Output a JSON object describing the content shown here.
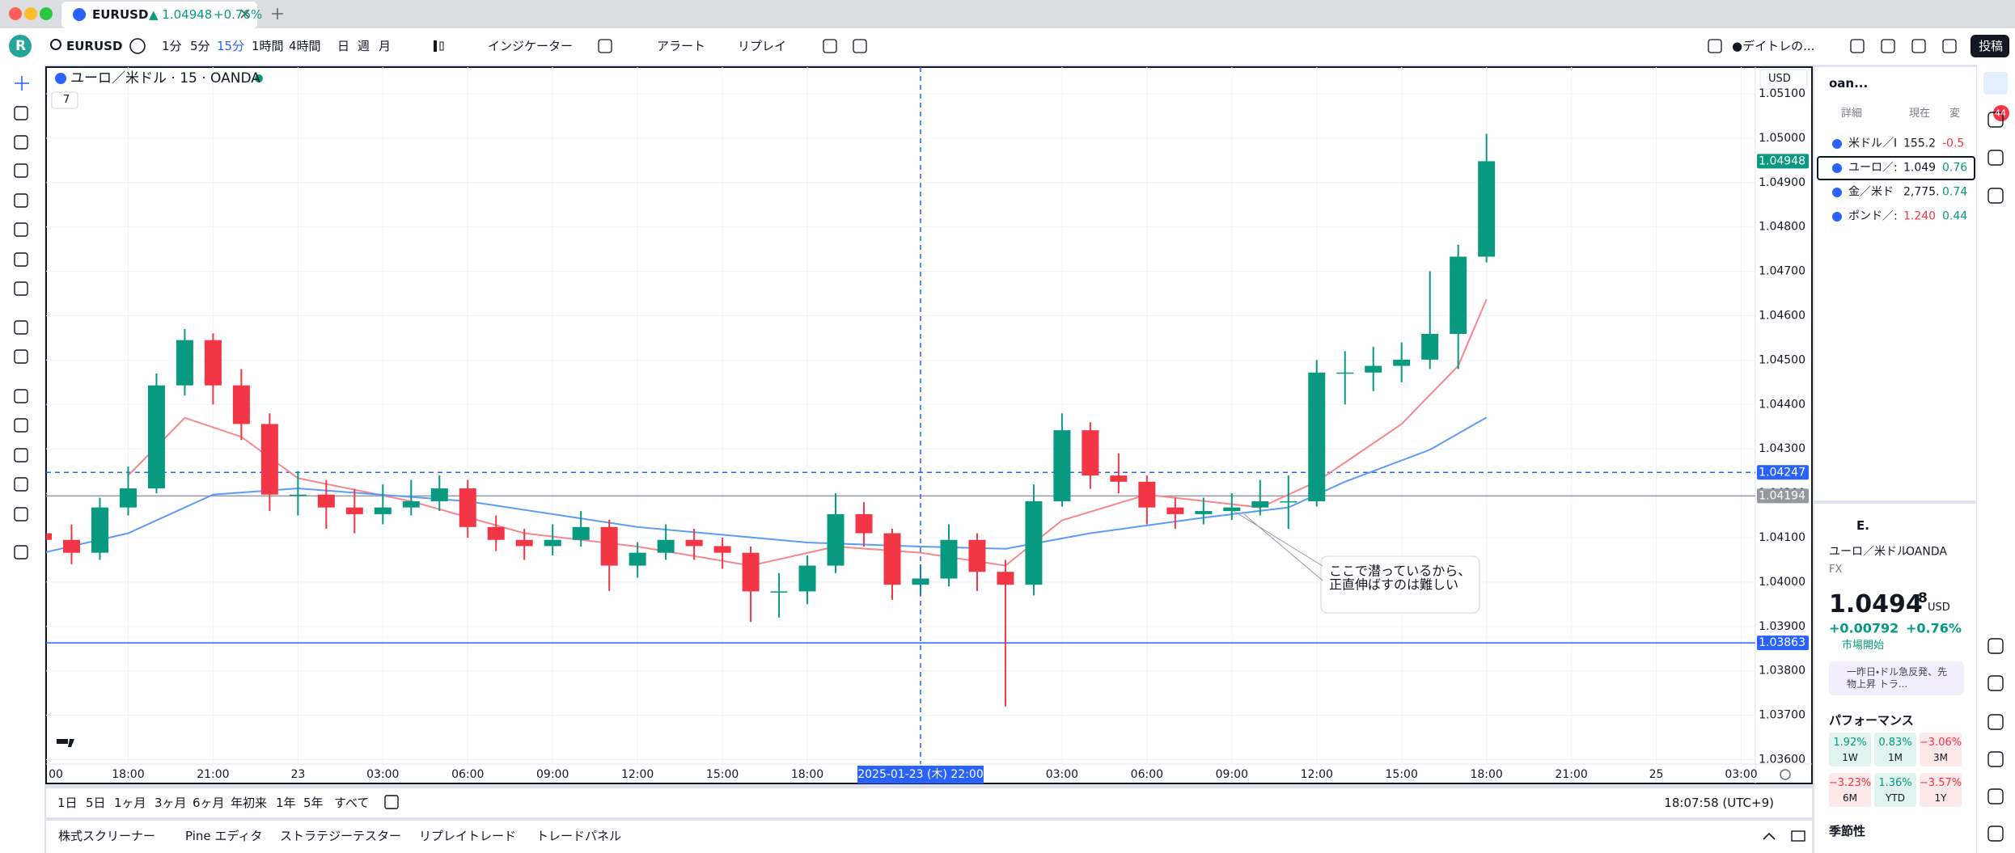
{
  "tab": {
    "symbol": "EURUSD",
    "price": "▲ 1.04948",
    "change": "+0.76%"
  },
  "toolbar": {
    "avatar": "R",
    "symbol": "EURUSD",
    "timeframes": [
      "1分",
      "5分",
      "15分",
      "1時間",
      "4時間",
      "日",
      "週",
      "月"
    ],
    "active_timeframe": "15分",
    "indicators": "インジケーター",
    "alert": "アラート",
    "replay": "リプレイ",
    "layout": "●デイトレの...",
    "publish": "投稿"
  },
  "chart_data": {
    "type": "candlestick",
    "title": "ユーロ／米ドル · 15 · OANDA",
    "indicator_count": 7,
    "currency": "USD",
    "up_color": "#089981",
    "down_color": "#f23645",
    "grid": true,
    "x": [
      15,
      16,
      17,
      18,
      19,
      20,
      21,
      22,
      23,
      24,
      25,
      26,
      27,
      28,
      29,
      30,
      31,
      32,
      33,
      34,
      35,
      36,
      37,
      38,
      39,
      40,
      41,
      42,
      43,
      44,
      45,
      46,
      47,
      48,
      49,
      50,
      51,
      52,
      53,
      54,
      55,
      56,
      57,
      58,
      59,
      60,
      61,
      62,
      63,
      64,
      65,
      66
    ],
    "open": [
      1.0411,
      1.04095,
      1.04066,
      1.04168,
      1.04211,
      1.04443,
      1.04545,
      1.04443,
      1.04356,
      1.04197,
      1.04197,
      1.04168,
      1.04153,
      1.04168,
      1.04182,
      1.04211,
      1.04124,
      1.04095,
      1.04081,
      1.04095,
      1.04124,
      1.04037,
      1.04066,
      1.04095,
      1.04081,
      1.04066,
      1.03979,
      1.03979,
      1.04037,
      1.04153,
      1.0411,
      1.03994,
      1.04008,
      1.04095,
      1.04023,
      1.03994,
      1.04182,
      1.04342,
      1.0424,
      1.04226,
      1.04168,
      1.04153,
      1.0416,
      1.04168,
      1.04182,
      1.04182,
      1.04472,
      1.04472,
      1.04487,
      1.04501,
      1.04559,
      1.04733
    ],
    "high": [
      1.0414,
      1.0413,
      1.0419,
      1.0426,
      1.0447,
      1.0457,
      1.0456,
      1.0448,
      1.0438,
      1.0425,
      1.0423,
      1.0421,
      1.0422,
      1.0423,
      1.0424,
      1.0423,
      1.0415,
      1.0412,
      1.0413,
      1.0416,
      1.0414,
      1.0409,
      1.0413,
      1.0412,
      1.041,
      1.0408,
      1.0402,
      1.0406,
      1.042,
      1.0418,
      1.0412,
      1.0404,
      1.0413,
      1.0411,
      1.0405,
      1.0422,
      1.0438,
      1.0436,
      1.0429,
      1.0424,
      1.0419,
      1.0419,
      1.042,
      1.0423,
      1.0424,
      1.045,
      1.0452,
      1.0453,
      1.0454,
      1.047,
      1.0476,
      1.0501
    ],
    "low": [
      1.0401,
      1.0404,
      1.0405,
      1.0415,
      1.042,
      1.0442,
      1.044,
      1.0432,
      1.0416,
      1.0415,
      1.0412,
      1.0411,
      1.0413,
      1.0415,
      1.0416,
      1.041,
      1.0407,
      1.0405,
      1.0406,
      1.0408,
      1.0398,
      1.0401,
      1.0405,
      1.0405,
      1.0403,
      1.0391,
      1.0392,
      1.0395,
      1.0402,
      1.0408,
      1.0396,
      1.0397,
      1.0399,
      1.0398,
      1.0372,
      1.0397,
      1.0417,
      1.0421,
      1.042,
      1.0413,
      1.0412,
      1.0413,
      1.0414,
      1.0415,
      1.0412,
      1.0417,
      1.044,
      1.0443,
      1.0445,
      1.0448,
      1.0448,
      1.0472
    ],
    "close": [
      1.04095,
      1.04066,
      1.04168,
      1.04211,
      1.04443,
      1.04545,
      1.04443,
      1.04356,
      1.04197,
      1.04197,
      1.04168,
      1.04153,
      1.04168,
      1.04182,
      1.04211,
      1.04124,
      1.04095,
      1.04081,
      1.04095,
      1.04124,
      1.04037,
      1.04066,
      1.04095,
      1.04081,
      1.04066,
      1.03979,
      1.03979,
      1.04037,
      1.04153,
      1.0411,
      1.03994,
      1.04008,
      1.04095,
      1.04023,
      1.03994,
      1.04182,
      1.04342,
      1.0424,
      1.04226,
      1.04168,
      1.04153,
      1.0416,
      1.04168,
      1.04182,
      1.04182,
      1.04472,
      1.04472,
      1.04487,
      1.04501,
      1.04559,
      1.04733,
      1.04948
    ],
    "moving_averages": [
      {
        "color": "#f7868f",
        "x": [
          18,
          20,
          22,
          24,
          28,
          32,
          36,
          40,
          43,
          46,
          49,
          51,
          54,
          58,
          60,
          63,
          65,
          66
        ],
        "values": [
          1.0424,
          1.0437,
          1.04327,
          1.04234,
          1.04182,
          1.0411,
          1.0408,
          1.04037,
          1.0408,
          1.04066,
          1.04037,
          1.04139,
          1.04197,
          1.04168,
          1.04226,
          1.04356,
          1.04487,
          1.04637
        ]
      },
      {
        "color": "#5b9cf6",
        "x": [
          15,
          18,
          21,
          24,
          30,
          36,
          42,
          46,
          49,
          52,
          56,
          59,
          61,
          64,
          66
        ],
        "values": [
          1.04066,
          1.0411,
          1.04197,
          1.04211,
          1.04182,
          1.04124,
          1.04089,
          1.0408,
          1.04075,
          1.0411,
          1.04145,
          1.04168,
          1.04226,
          1.04298,
          1.04371
        ]
      }
    ],
    "price_lines": [
      {
        "value": 1.04948,
        "color": "#089981",
        "style": "none"
      },
      {
        "value": 1.04247,
        "color": "#2962ff",
        "style": "dashed"
      },
      {
        "value": 1.04194,
        "color": "#9598a1",
        "style": "solid"
      },
      {
        "value": 1.03863,
        "color": "#2962ff",
        "style": "solid"
      }
    ],
    "crosshair": {
      "x": 46,
      "label": "2025-01-23 (木)  22:00",
      "color": "#2962ff"
    },
    "annotation": [
      "ここで潜っているから、",
      "正直伸ばすのは難しい"
    ],
    "xlim": [
      15.1,
      75.5
    ],
    "xticks": [
      {
        "value": 15,
        "label": "00"
      },
      {
        "value": 18,
        "label": "18:00"
      },
      {
        "value": 21,
        "label": "21:00"
      },
      {
        "value": 24,
        "label": "23"
      },
      {
        "value": 27,
        "label": "03:00"
      },
      {
        "value": 30,
        "label": "06:00"
      },
      {
        "value": 33,
        "label": "09:00"
      },
      {
        "value": 36,
        "label": "12:00"
      },
      {
        "value": 39,
        "label": "15:00"
      },
      {
        "value": 42,
        "label": "18:00"
      },
      {
        "value": 51,
        "label": "03:00"
      },
      {
        "value": 54,
        "label": "06:00"
      },
      {
        "value": 57,
        "label": "09:00"
      },
      {
        "value": 60,
        "label": "12:00"
      },
      {
        "value": 63,
        "label": "15:00"
      },
      {
        "value": 66,
        "label": "18:00"
      },
      {
        "value": 69,
        "label": "21:00"
      },
      {
        "value": 72,
        "label": "25"
      },
      {
        "value": 75,
        "label": "03:00"
      }
    ],
    "ylim": [
      1.0359,
      1.0516
    ],
    "yticks": [
      {
        "value": 1.036,
        "label": "1.03600"
      },
      {
        "value": 1.037,
        "label": "1.03700"
      },
      {
        "value": 1.038,
        "label": "1.03800"
      },
      {
        "value": 1.039,
        "label": "1.03900"
      },
      {
        "value": 1.04,
        "label": "1.04000"
      },
      {
        "value": 1.041,
        "label": "1.04100"
      },
      {
        "value": 1.042,
        "label": "1.04200"
      },
      {
        "value": 1.043,
        "label": "1.04300"
      },
      {
        "value": 1.044,
        "label": "1.04400"
      },
      {
        "value": 1.045,
        "label": "1.04500"
      },
      {
        "value": 1.046,
        "label": "1.04600"
      },
      {
        "value": 1.047,
        "label": "1.04700"
      },
      {
        "value": 1.048,
        "label": "1.04800"
      },
      {
        "value": 1.049,
        "label": "1.04900"
      },
      {
        "value": 1.05,
        "label": "1.05000"
      },
      {
        "value": 1.051,
        "label": "1.05100"
      }
    ]
  },
  "ranges": [
    "1日",
    "5日",
    "1ヶ月",
    "3ヶ月",
    "6ヶ月",
    "年初来",
    "1年",
    "5年",
    "すべて"
  ],
  "clock": "18:07:58 (UTC+9)",
  "bottom_tabs": [
    "株式スクリーナー",
    "Pine エディタ",
    "ストラテジーテスター",
    "リプレイトレード",
    "トレードパネル"
  ],
  "watchlist": {
    "name": "oan...",
    "columns": [
      "詳細",
      "現在",
      "変"
    ],
    "rows": [
      [
        "米ドル／I",
        "155.2",
        "-0.5"
      ],
      [
        "ユーロ／:",
        "1.049",
        "0.76"
      ],
      [
        "金／米ド",
        "2,775.",
        "0.74"
      ],
      [
        "ポンド／:",
        "1.240",
        "0.44"
      ]
    ]
  },
  "details": {
    "short": "E.",
    "name": "ユーロ／米ドル",
    "exchange": "OANDA",
    "type": "FX",
    "price": "1.0494",
    "price_small": "8",
    "currency": "USD",
    "change": "+0.00792",
    "change_pct": "+0.76%",
    "status": "市場開始",
    "news": "一昨日・ドル急反発、先物上昇 トラ...",
    "performance_title": "パフォーマンス",
    "performance": [
      [
        "1.92%",
        "1W"
      ],
      [
        "0.83%",
        "1M"
      ],
      [
        "−3.06%",
        "3M"
      ],
      [
        "−3.23%",
        "6M"
      ],
      [
        "1.36%",
        "YTD"
      ],
      [
        "−3.57%",
        "1Y"
      ]
    ],
    "seasonality": "季節性"
  },
  "notifications": "44"
}
